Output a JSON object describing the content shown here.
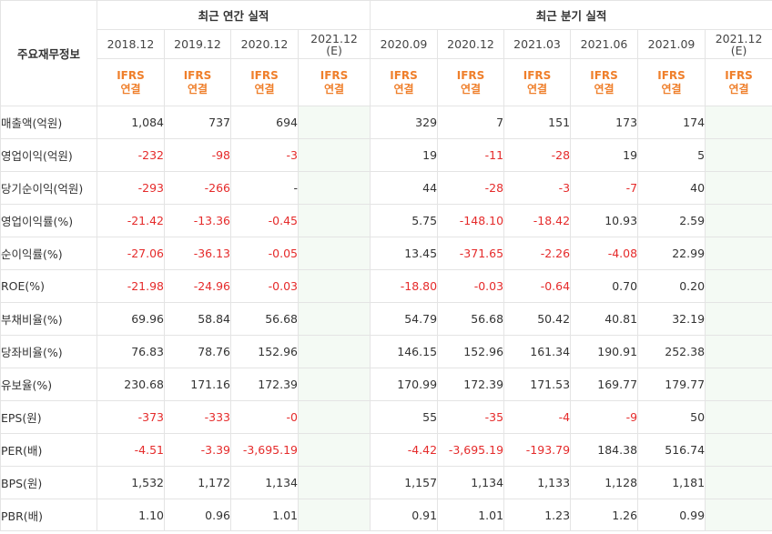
{
  "header": {
    "corner_label": "주요재무정보",
    "annual_title": "최근 연간 실적",
    "quarter_title": "최근 분기 실적",
    "annual_periods": [
      "2018.12",
      "2019.12",
      "2020.12",
      "2021.12"
    ],
    "annual_estimate_marker": "(E)",
    "quarter_periods": [
      "2020.09",
      "2020.12",
      "2021.03",
      "2021.06",
      "2021.09",
      "2021.12"
    ],
    "quarter_estimate_marker": "(E)",
    "basis_line1": "IFRS",
    "basis_line2": "연결"
  },
  "rows": [
    {
      "label": "매출액(억원)",
      "annual": [
        "1,084",
        "737",
        "694",
        ""
      ],
      "quarter": [
        "329",
        "7",
        "151",
        "173",
        "174",
        ""
      ]
    },
    {
      "label": "영업이익(억원)",
      "annual": [
        "-232",
        "-98",
        "-3",
        ""
      ],
      "quarter": [
        "19",
        "-11",
        "-28",
        "19",
        "5",
        ""
      ]
    },
    {
      "label": "당기순이익(억원)",
      "annual": [
        "-293",
        "-266",
        "-",
        ""
      ],
      "quarter": [
        "44",
        "-28",
        "-3",
        "-7",
        "40",
        ""
      ]
    },
    {
      "label": "영업이익률(%)",
      "annual": [
        "-21.42",
        "-13.36",
        "-0.45",
        ""
      ],
      "quarter": [
        "5.75",
        "-148.10",
        "-18.42",
        "10.93",
        "2.59",
        ""
      ]
    },
    {
      "label": "순이익률(%)",
      "annual": [
        "-27.06",
        "-36.13",
        "-0.05",
        ""
      ],
      "quarter": [
        "13.45",
        "-371.65",
        "-2.26",
        "-4.08",
        "22.99",
        ""
      ]
    },
    {
      "label": "ROE(%)",
      "annual": [
        "-21.98",
        "-24.96",
        "-0.03",
        ""
      ],
      "quarter": [
        "-18.80",
        "-0.03",
        "-0.64",
        "0.70",
        "0.20",
        ""
      ]
    },
    {
      "label": "부채비율(%)",
      "annual": [
        "69.96",
        "58.84",
        "56.68",
        ""
      ],
      "quarter": [
        "54.79",
        "56.68",
        "50.42",
        "40.81",
        "32.19",
        ""
      ]
    },
    {
      "label": "당좌비율(%)",
      "annual": [
        "76.83",
        "78.76",
        "152.96",
        ""
      ],
      "quarter": [
        "146.15",
        "152.96",
        "161.34",
        "190.91",
        "252.38",
        ""
      ]
    },
    {
      "label": "유보율(%)",
      "annual": [
        "230.68",
        "171.16",
        "172.39",
        ""
      ],
      "quarter": [
        "170.99",
        "172.39",
        "171.53",
        "169.77",
        "179.77",
        ""
      ]
    },
    {
      "label": "EPS(원)",
      "annual": [
        "-373",
        "-333",
        "-0",
        ""
      ],
      "quarter": [
        "55",
        "-35",
        "-4",
        "-9",
        "50",
        ""
      ]
    },
    {
      "label": "PER(배)",
      "annual": [
        "-4.51",
        "-3.39",
        "-3,695.19",
        ""
      ],
      "quarter": [
        "-4.42",
        "-3,695.19",
        "-193.79",
        "184.38",
        "516.74",
        ""
      ]
    },
    {
      "label": "BPS(원)",
      "annual": [
        "1,532",
        "1,172",
        "1,134",
        ""
      ],
      "quarter": [
        "1,157",
        "1,134",
        "1,133",
        "1,128",
        "1,181",
        ""
      ]
    },
    {
      "label": "PBR(배)",
      "annual": [
        "1.10",
        "0.96",
        "1.01",
        ""
      ],
      "quarter": [
        "0.91",
        "1.01",
        "1.23",
        "1.26",
        "0.99",
        ""
      ]
    }
  ],
  "colors": {
    "negative": "#e52b2b",
    "basis_label": "#ef7f2b",
    "estimate_bg": "#f4faf4",
    "estimate_date": "#7aa24f"
  }
}
